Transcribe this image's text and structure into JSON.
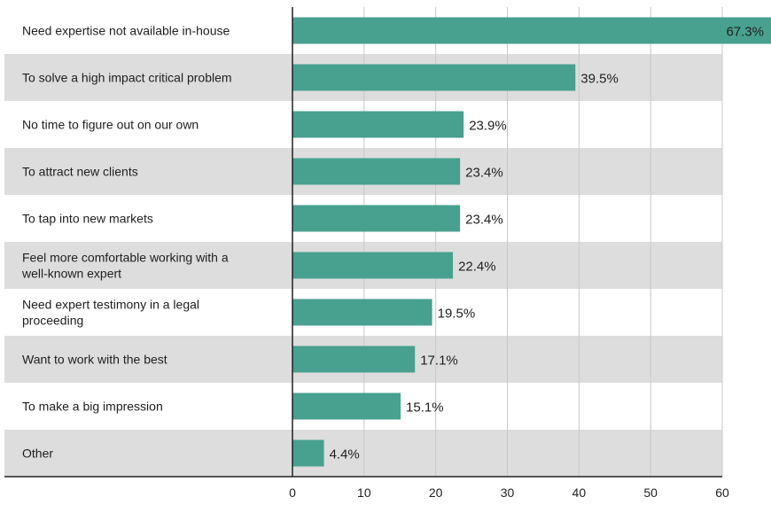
{
  "chart_data": {
    "type": "bar",
    "orientation": "horizontal",
    "categories": [
      "Need expertise not available in-house",
      "To solve a high impact critical problem",
      "No time to figure out on our own",
      "To attract new clients",
      "To tap into new markets",
      "Feel more comfortable working with a well-known expert",
      "Need expert testimony in a legal proceeding",
      "Want to work with the best",
      "To make a big impression",
      "Other"
    ],
    "category_lines": [
      [
        "Need expertise not available in-house"
      ],
      [
        "To solve a high impact critical problem"
      ],
      [
        "No time to figure out on our own"
      ],
      [
        "To attract new clients"
      ],
      [
        "To tap into new markets"
      ],
      [
        "Feel more comfortable working with a",
        "well-known expert"
      ],
      [
        "Need expert testimony in a legal",
        "proceeding"
      ],
      [
        "Want to work with the best"
      ],
      [
        "To make a big impression"
      ],
      [
        "Other"
      ]
    ],
    "values": [
      67.3,
      39.5,
      23.9,
      23.4,
      23.4,
      22.4,
      19.5,
      17.1,
      15.1,
      4.4
    ],
    "value_labels": [
      "67.3%",
      "39.5%",
      "23.9%",
      "23.4%",
      "23.4%",
      "22.4%",
      "19.5%",
      "17.1%",
      "15.1%",
      "4.4%"
    ],
    "xlim": [
      0,
      60
    ],
    "xticks": [
      "0",
      "10",
      "20",
      "30",
      "40",
      "50",
      "60"
    ],
    "xlabel": "",
    "ylabel": "",
    "title": "",
    "grid": "vertical",
    "colors": {
      "bar": "#47a18e",
      "band": "#dddddd",
      "grid": "#c8c8c8",
      "axis": "#222222",
      "inside_label": "#ffffff"
    }
  }
}
